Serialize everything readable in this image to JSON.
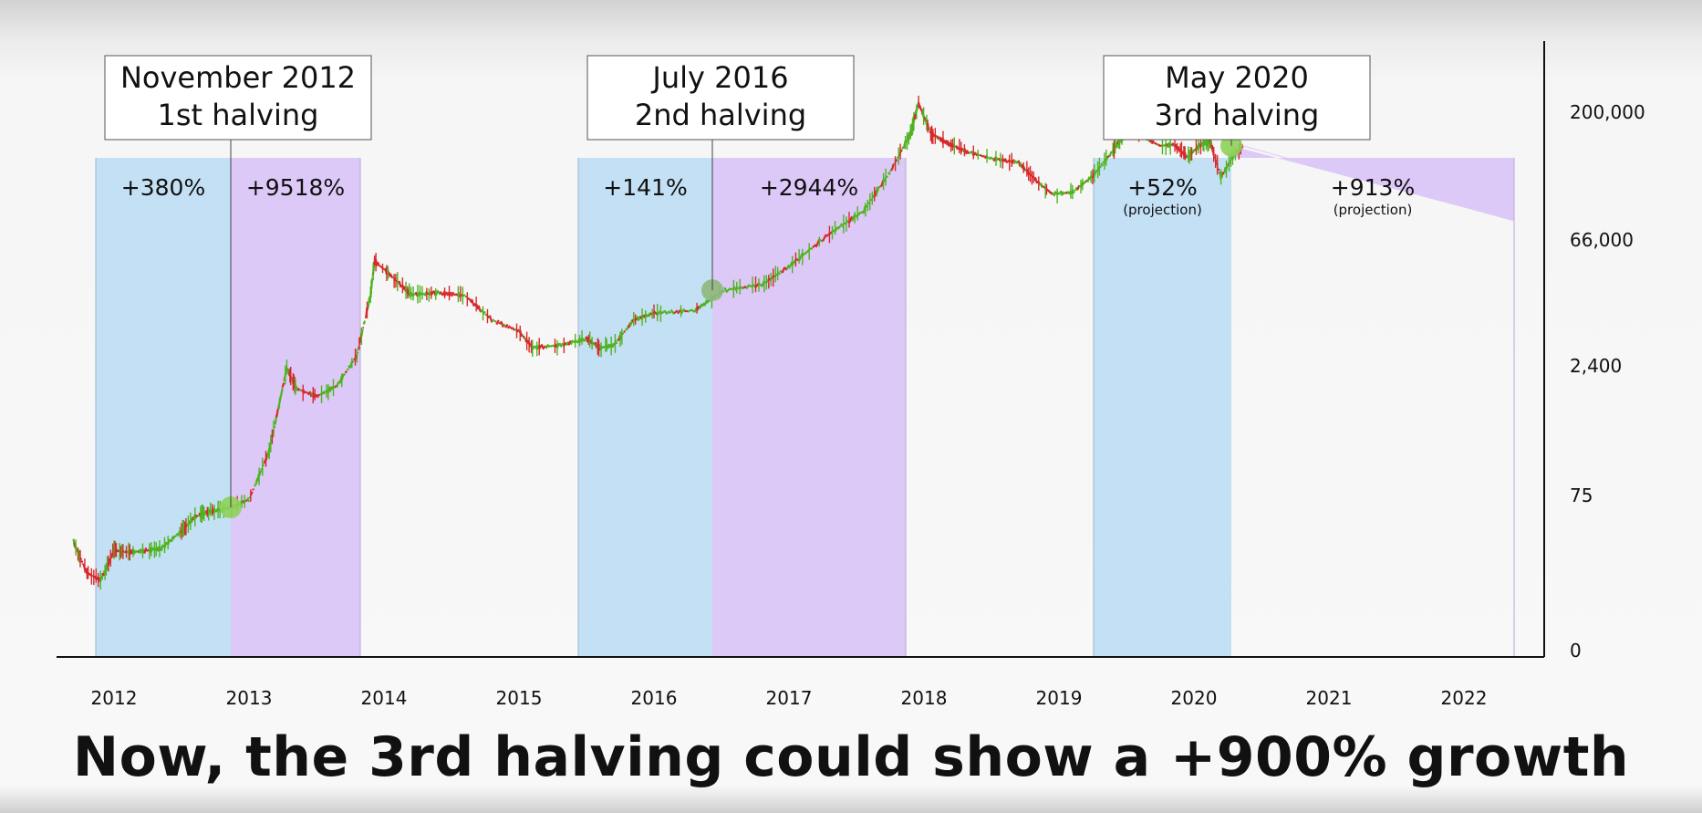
{
  "caption": "Now, the 3rd halving could show a +900% growth",
  "chart_data": {
    "type": "line",
    "y_scale": "log",
    "x_ticks": [
      "2012",
      "2013",
      "2014",
      "2015",
      "2016",
      "2017",
      "2018",
      "2019",
      "2020",
      "2021",
      "2022"
    ],
    "y_ticks": [
      "0",
      "75",
      "2,400",
      "66,000",
      "200,000"
    ],
    "halvings": [
      {
        "line1": "November 2012",
        "line2": "1st halving",
        "before_pct": "+380%",
        "after_pct": "+9518%",
        "before_note": "",
        "after_note": "",
        "date": 2012.87,
        "price": 12
      },
      {
        "line1": "July 2016",
        "line2": "2nd halving",
        "before_pct": "+141%",
        "after_pct": "+2944%",
        "before_note": "",
        "after_note": "",
        "date": 2016.52,
        "price": 650
      },
      {
        "line1": "May 2020",
        "line2": "3rd halving",
        "before_pct": "+52%",
        "after_pct": "+913%",
        "before_note": "(projection)",
        "after_note": "(projection)",
        "date": 2020.36,
        "price": 8800
      }
    ],
    "price_series": [
      {
        "x": 2011.7,
        "y": 6
      },
      {
        "x": 2011.8,
        "y": 3
      },
      {
        "x": 2011.9,
        "y": 2.5
      },
      {
        "x": 2012.0,
        "y": 5
      },
      {
        "x": 2012.1,
        "y": 4.8
      },
      {
        "x": 2012.2,
        "y": 4.9
      },
      {
        "x": 2012.35,
        "y": 5.2
      },
      {
        "x": 2012.5,
        "y": 7.5
      },
      {
        "x": 2012.6,
        "y": 10
      },
      {
        "x": 2012.7,
        "y": 11
      },
      {
        "x": 2012.87,
        "y": 12
      },
      {
        "x": 2013.0,
        "y": 14
      },
      {
        "x": 2013.15,
        "y": 35
      },
      {
        "x": 2013.28,
        "y": 160
      },
      {
        "x": 2013.35,
        "y": 110
      },
      {
        "x": 2013.5,
        "y": 95
      },
      {
        "x": 2013.65,
        "y": 115
      },
      {
        "x": 2013.8,
        "y": 200
      },
      {
        "x": 2013.9,
        "y": 600
      },
      {
        "x": 2013.93,
        "y": 1100
      },
      {
        "x": 2014.05,
        "y": 850
      },
      {
        "x": 2014.2,
        "y": 600
      },
      {
        "x": 2014.4,
        "y": 620
      },
      {
        "x": 2014.6,
        "y": 590
      },
      {
        "x": 2014.8,
        "y": 380
      },
      {
        "x": 2015.0,
        "y": 310
      },
      {
        "x": 2015.1,
        "y": 230
      },
      {
        "x": 2015.3,
        "y": 240
      },
      {
        "x": 2015.5,
        "y": 270
      },
      {
        "x": 2015.6,
        "y": 230
      },
      {
        "x": 2015.7,
        "y": 240
      },
      {
        "x": 2015.85,
        "y": 380
      },
      {
        "x": 2016.0,
        "y": 430
      },
      {
        "x": 2016.3,
        "y": 450
      },
      {
        "x": 2016.52,
        "y": 650
      },
      {
        "x": 2016.8,
        "y": 720
      },
      {
        "x": 2017.0,
        "y": 1000
      },
      {
        "x": 2017.3,
        "y": 1800
      },
      {
        "x": 2017.55,
        "y": 2700
      },
      {
        "x": 2017.75,
        "y": 5500
      },
      {
        "x": 2017.9,
        "y": 11000
      },
      {
        "x": 2017.96,
        "y": 19000
      },
      {
        "x": 2018.05,
        "y": 11000
      },
      {
        "x": 2018.15,
        "y": 9500
      },
      {
        "x": 2018.3,
        "y": 8000
      },
      {
        "x": 2018.5,
        "y": 7000
      },
      {
        "x": 2018.7,
        "y": 6500
      },
      {
        "x": 2018.85,
        "y": 4500
      },
      {
        "x": 2018.95,
        "y": 3700
      },
      {
        "x": 2019.1,
        "y": 3800
      },
      {
        "x": 2019.25,
        "y": 5100
      },
      {
        "x": 2019.4,
        "y": 8000
      },
      {
        "x": 2019.5,
        "y": 12000
      },
      {
        "x": 2019.6,
        "y": 10500
      },
      {
        "x": 2019.75,
        "y": 8800
      },
      {
        "x": 2019.85,
        "y": 9000
      },
      {
        "x": 2019.95,
        "y": 7200
      },
      {
        "x": 2020.05,
        "y": 9000
      },
      {
        "x": 2020.12,
        "y": 9600
      },
      {
        "x": 2020.2,
        "y": 5000
      },
      {
        "x": 2020.28,
        "y": 7000
      },
      {
        "x": 2020.36,
        "y": 8800
      }
    ],
    "projection": [
      {
        "x": 2020.36,
        "y": 8800
      },
      {
        "x": 2022.6,
        "y": 89000
      }
    ],
    "colors": {
      "before_region": "#c4e0f4",
      "after_region": "#dcc9f7",
      "up": "#4fb320",
      "down": "#d8282c",
      "halving_marker": "#8ed25a",
      "halving_marker_2": "#8fb87c"
    }
  }
}
